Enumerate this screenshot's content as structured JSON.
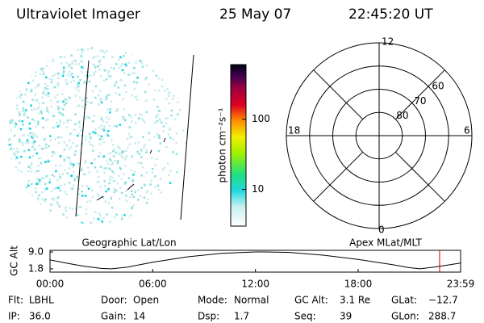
{
  "header": {
    "instrument": "Ultraviolet Imager",
    "date": "25 May 07",
    "time": "22:45:20 UT"
  },
  "colorbar": {
    "label": "photon cm⁻²s⁻¹",
    "log": true,
    "ylim": [
      3,
      600
    ],
    "yticks": [
      10,
      100
    ]
  },
  "polar": {
    "rlim": [
      50,
      90
    ],
    "rings": [
      60,
      70,
      80
    ],
    "mlt_labels": {
      "top": "12",
      "right": "6",
      "bottom": "0",
      "left": "18"
    }
  },
  "orbit": {
    "ylabel": "GC Alt",
    "left_title": "Geographic Lat/Lon",
    "right_title": "Apex MLat/MLT",
    "xlim": [
      0,
      23.983
    ],
    "ylim": [
      0.4,
      9.7
    ],
    "yticks": [
      {
        "value": 9,
        "label": "9.0"
      },
      {
        "value": 1.8,
        "label": "1.8"
      }
    ],
    "xticks": [
      {
        "value": 0,
        "label": "00:00"
      },
      {
        "value": 6,
        "label": "06:00"
      },
      {
        "value": 12,
        "label": "12:00"
      },
      {
        "value": 18,
        "label": "18:00"
      },
      {
        "value": 23.983,
        "label": "23:59"
      }
    ],
    "x": [
      0,
      1,
      2,
      3,
      3.6,
      4.5,
      6,
      8,
      10,
      12,
      12.6,
      14,
      16,
      18,
      20,
      21,
      21.6,
      22.5,
      23.983
    ],
    "values": [
      5.6,
      4.2,
      2.9,
      2.0,
      1.8,
      2.5,
      4.6,
      6.9,
      8.4,
      9.0,
      9.0,
      8.8,
      7.6,
      5.8,
      3.6,
      2.3,
      1.8,
      2.6,
      4.3
    ],
    "marker": 22.756,
    "marker_color": "#cc0000"
  },
  "info": [
    [
      {
        "label": "Flt:",
        "value": "LBHL"
      },
      {
        "label": "Door:",
        "value": "Open"
      },
      {
        "label": "Mode:",
        "value": "Normal"
      },
      {
        "label": "GC Alt:",
        "value": "3.1 Re"
      },
      {
        "label": "GLat:",
        "value": "−12.7"
      }
    ],
    [
      {
        "label": "IP:",
        "value": "36.0"
      },
      {
        "label": "Gain:",
        "value": "14"
      },
      {
        "label": "Dsp:",
        "value": "1.7"
      },
      {
        "label": "Seq:",
        "value": "39"
      },
      {
        "label": "GLon:",
        "value": "288.7"
      }
    ]
  ]
}
